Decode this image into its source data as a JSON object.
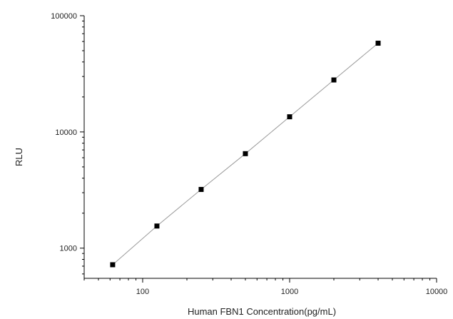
{
  "chart_data": {
    "type": "scatter",
    "xlabel": "Human FBN1 Concentration(pg/mL)",
    "ylabel": "RLU",
    "x_scale": "log",
    "y_scale": "log",
    "xlim": [
      40,
      10000
    ],
    "ylim": [
      550,
      100000
    ],
    "grid": false,
    "x_ticks": [
      {
        "value": 100,
        "label": "100"
      },
      {
        "value": 1000,
        "label": "1000"
      },
      {
        "value": 10000,
        "label": "10000"
      }
    ],
    "y_ticks": [
      {
        "value": 1000,
        "label": "1000"
      },
      {
        "value": 10000,
        "label": "10000"
      },
      {
        "value": 100000,
        "label": "100000"
      }
    ],
    "series": [
      {
        "x": [
          62.5,
          125,
          250,
          500,
          1000,
          2000,
          4000
        ],
        "y": [
          720,
          1550,
          3200,
          6500,
          13500,
          28000,
          58000
        ],
        "marker": "square",
        "fit_line": true
      }
    ],
    "marker_color": "#000000",
    "line_color": "#9a9a9a",
    "axis_color": "#000000"
  }
}
